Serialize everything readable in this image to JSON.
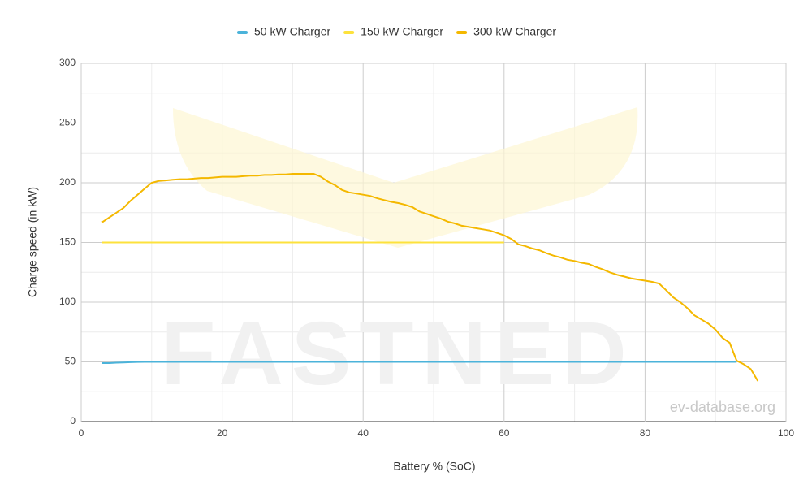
{
  "chart_data": {
    "type": "line",
    "x_label": "Battery % (SoC)",
    "y_label": "Charge speed (in kW)",
    "watermark": "FASTNED",
    "source": "ev-database.org",
    "x": [
      3,
      4,
      5,
      6,
      7,
      8,
      9,
      10,
      11,
      12,
      13,
      14,
      15,
      16,
      17,
      18,
      19,
      20,
      21,
      22,
      23,
      24,
      25,
      26,
      27,
      28,
      29,
      30,
      31,
      32,
      33,
      34,
      35,
      36,
      37,
      38,
      39,
      40,
      41,
      42,
      43,
      44,
      45,
      46,
      47,
      48,
      49,
      50,
      51,
      52,
      53,
      54,
      55,
      56,
      57,
      58,
      59,
      60,
      61,
      62,
      63,
      64,
      65,
      66,
      67,
      68,
      69,
      70,
      71,
      72,
      73,
      74,
      75,
      76,
      77,
      78,
      79,
      80,
      81,
      82,
      83,
      84,
      85,
      86,
      87,
      88,
      89,
      90,
      91,
      92,
      93,
      94,
      95,
      96
    ],
    "series": [
      {
        "name": "50 kW Charger",
        "color": "#4bb3da",
        "values": [
          49,
          49,
          49.3,
          49.5,
          49.7,
          49.9,
          50,
          50,
          50,
          50,
          50,
          50,
          50,
          50,
          50,
          50,
          50,
          50,
          50,
          50,
          50,
          50,
          50,
          50,
          50,
          50,
          50,
          50,
          50,
          50,
          50,
          50,
          50,
          50,
          50,
          50,
          50,
          50,
          50,
          50,
          50,
          50,
          50,
          50,
          50,
          50,
          50,
          50,
          50,
          50,
          50,
          50,
          50,
          50,
          50,
          50,
          50,
          50,
          50,
          50,
          50,
          50,
          50,
          50,
          50,
          50,
          50,
          50,
          50,
          50,
          50,
          50,
          50,
          50,
          50,
          50,
          50,
          50,
          50,
          50,
          50,
          50,
          50,
          50,
          50,
          50,
          50,
          50,
          50,
          50,
          50,
          null,
          null,
          null
        ]
      },
      {
        "name": "150 kW Charger",
        "color": "#fde23c",
        "values": [
          150,
          150,
          150,
          150,
          150,
          150,
          150,
          150,
          150,
          150,
          150,
          150,
          150,
          150,
          150,
          150,
          150,
          150,
          150,
          150,
          150,
          150,
          150,
          150,
          150,
          150,
          150,
          150,
          150,
          150,
          150,
          150,
          150,
          150,
          150,
          150,
          150,
          150,
          150,
          150,
          150,
          150,
          150,
          150,
          150,
          150,
          150,
          150,
          150,
          150,
          150,
          150,
          150,
          150,
          150,
          150,
          150,
          150,
          null,
          null,
          null,
          null,
          null,
          null,
          null,
          null,
          null,
          null,
          null,
          null,
          null,
          null,
          null,
          null,
          null,
          null,
          null,
          null,
          null,
          null,
          null,
          null,
          null,
          null,
          null,
          null,
          null,
          null,
          null,
          null,
          null,
          null,
          null,
          null
        ]
      },
      {
        "name": "300 kW Charger",
        "color": "#f4b800",
        "values": [
          167,
          171,
          175,
          179,
          185,
          190,
          195,
          200,
          201.5,
          202,
          202.5,
          203,
          203,
          203.5,
          204,
          204,
          204.5,
          205,
          205,
          205,
          205.5,
          206,
          206,
          206.5,
          206.5,
          207,
          207,
          207.5,
          207.5,
          207.5,
          207.5,
          205,
          201,
          198,
          194,
          192,
          191,
          190,
          189,
          187,
          185.5,
          184,
          183,
          181.5,
          179.5,
          176,
          174,
          172,
          170,
          167.5,
          166,
          164,
          163,
          162,
          161,
          160,
          158,
          156,
          153,
          148.5,
          147,
          145,
          143.5,
          141,
          139,
          137.5,
          135.5,
          134.5,
          133,
          132,
          129.5,
          127.5,
          125,
          123,
          121.5,
          120,
          119,
          118,
          117,
          115.5,
          110,
          104,
          100,
          95,
          89,
          85.5,
          82,
          77,
          70,
          66,
          51,
          48,
          44,
          34
        ]
      }
    ],
    "xlim": [
      0,
      100
    ],
    "xticks": [
      0,
      20,
      40,
      60,
      80,
      100
    ],
    "ylim": [
      0,
      300
    ],
    "yticks": [
      0,
      50,
      100,
      150,
      200,
      250,
      300
    ],
    "grid": true,
    "minor_grid": true,
    "legend": "top"
  }
}
